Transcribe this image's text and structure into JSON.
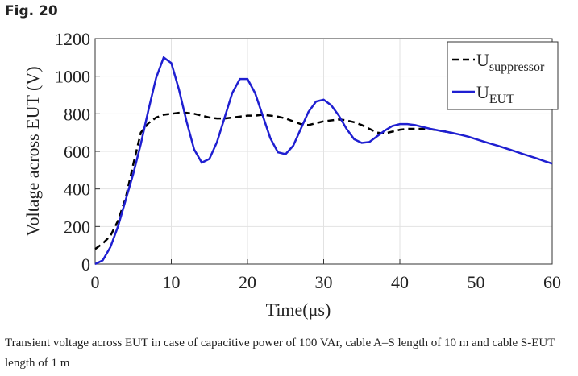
{
  "figure_label": "Fig. 20",
  "caption": "Transient voltage across EUT in case of capacitive power of 100 VAr, cable A–S length of 10 m and cable S-EUT length of 1 m",
  "chart_data": {
    "type": "line",
    "xlabel": "Time(μs)",
    "ylabel": "Voltage across EUT (V)",
    "x": [
      0,
      1,
      2,
      3,
      4,
      5,
      6,
      7,
      8,
      9,
      10,
      11,
      12,
      13,
      14,
      15,
      16,
      17,
      18,
      19,
      20,
      21,
      22,
      23,
      24,
      25,
      26,
      27,
      28,
      29,
      30,
      31,
      32,
      33,
      34,
      35,
      36,
      37,
      38,
      39,
      40,
      41,
      42,
      43,
      44,
      45,
      46,
      47,
      48,
      49,
      50,
      51,
      52,
      53,
      54,
      55,
      56,
      57,
      58,
      59,
      60
    ],
    "series": [
      {
        "name": "Usuppressor",
        "color": "#000000",
        "dash": true,
        "values": [
          80,
          110,
          150,
          230,
          350,
          530,
          700,
          750,
          780,
          795,
          800,
          805,
          805,
          800,
          790,
          780,
          775,
          775,
          780,
          785,
          790,
          790,
          795,
          790,
          785,
          775,
          760,
          745,
          740,
          750,
          760,
          765,
          770,
          765,
          755,
          740,
          720,
          700,
          695,
          705,
          715,
          720,
          720,
          720,
          718,
          712,
          705,
          697,
          null,
          null,
          null,
          null,
          null,
          null,
          null,
          null,
          null,
          null,
          null,
          null,
          null
        ]
      },
      {
        "name": "UEUT",
        "color": "#1f1fd1",
        "dash": false,
        "values": [
          0,
          20,
          90,
          200,
          340,
          480,
          640,
          820,
          990,
          1100,
          1070,
          930,
          760,
          610,
          540,
          560,
          650,
          780,
          910,
          985,
          985,
          910,
          790,
          670,
          595,
          585,
          630,
          720,
          810,
          865,
          875,
          845,
          790,
          720,
          665,
          645,
          650,
          680,
          710,
          735,
          745,
          745,
          740,
          730,
          720,
          712,
          705,
          697,
          688,
          678,
          665,
          652,
          640,
          628,
          615,
          602,
          588,
          575,
          562,
          548,
          535
        ]
      }
    ],
    "xlim": [
      0,
      60
    ],
    "xticks": [
      0,
      10,
      20,
      30,
      40,
      50,
      60
    ],
    "ylim": [
      0,
      1200
    ],
    "yticks": [
      0,
      200,
      400,
      600,
      800,
      1000,
      1200
    ],
    "grid": true,
    "legend": "upper right"
  }
}
